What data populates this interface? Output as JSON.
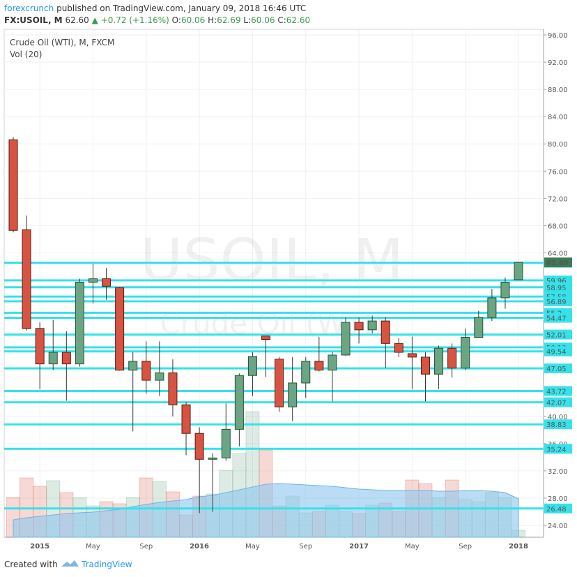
{
  "chart_data": {
    "type": "candlestick",
    "header": {
      "author": "forexcrunch",
      "published": "published on TradingView.com, January 09, 2018 16:46 UTC",
      "symbol": "FX:USOIL, M",
      "price": "62.60",
      "change": "+0.72 (+1.16%)",
      "o_label": "O:",
      "o": "60.06",
      "h_label": "H:",
      "h": "62.69",
      "l_label": "L:",
      "l": "60.06",
      "c_label": "C:",
      "c": "62.60"
    },
    "legend": {
      "title": "Crude Oil (WTI), M, FXCM",
      "volume": "Vol (20)"
    },
    "watermark": {
      "symbol": "USOIL, M",
      "name": "Crude Oil (WTI)"
    },
    "footer": {
      "created": "Created with",
      "brand": "TradingView"
    },
    "categories": [
      null,
      null,
      "2015",
      null,
      null,
      null,
      "May",
      null,
      null,
      null,
      "Sep",
      null,
      null,
      null,
      "2016",
      null,
      null,
      null,
      "May",
      null,
      null,
      null,
      "Sep",
      null,
      null,
      null,
      "2017",
      null,
      null,
      null,
      "May",
      null,
      null,
      null,
      "Sep",
      null,
      null,
      null,
      "2018"
    ],
    "open": [
      80.6,
      67.4,
      52.9,
      47.7,
      49.4,
      47.7,
      59.7,
      60.2,
      58.9,
      46.8,
      48.1,
      45.3,
      46.4,
      41.7,
      37.5,
      33.7,
      33.9,
      38.1,
      46,
      51.8,
      48.4,
      41.4,
      44.9,
      48.1,
      46.8,
      49,
      53.8,
      52.7,
      54,
      50.7,
      49.2,
      48.7,
      46.2,
      50,
      47.1,
      51.6,
      54.5,
      57.4,
      60.06
    ],
    "high": [
      81,
      69.5,
      53.8,
      54.2,
      52.5,
      60.2,
      62.4,
      61.8,
      59,
      49.4,
      51,
      51,
      48.4,
      42.1,
      38.4,
      34.6,
      41.9,
      46.3,
      49.4,
      51.8,
      48.7,
      48.7,
      48.7,
      51.7,
      49.4,
      54.5,
      54.5,
      54.8,
      54.5,
      51.5,
      51.7,
      49.4,
      50.4,
      50.7,
      52.9,
      55.5,
      58.7,
      60.4,
      62.69
    ],
    "low": [
      67,
      52.6,
      44,
      46.8,
      42.3,
      47.3,
      56.6,
      57.1,
      46.7,
      37.8,
      43.3,
      43,
      40,
      34.3,
      25.8,
      26,
      33.5,
      35.6,
      43,
      45.8,
      40.7,
      39.3,
      42.7,
      46.6,
      42.2,
      48.9,
      50.7,
      52.2,
      47.1,
      48.7,
      44,
      42.2,
      44,
      45.7,
      46.8,
      51.8,
      54,
      55.8,
      60.06
    ],
    "close": [
      67.3,
      52.9,
      47.7,
      49.4,
      47.7,
      59.7,
      60.2,
      59.1,
      46.8,
      48.1,
      45.3,
      46.4,
      41.7,
      37.5,
      33.7,
      33.9,
      38.1,
      46,
      48.8,
      51.3,
      41.4,
      44.9,
      48.1,
      46.8,
      49,
      53.8,
      52.7,
      54,
      50.7,
      49.4,
      48.7,
      46.2,
      50,
      47.1,
      51.6,
      54.5,
      57.4,
      59.7,
      62.6
    ],
    "volume": [
      57,
      85,
      73,
      81,
      64,
      57,
      45,
      51,
      48,
      57,
      85,
      80,
      65,
      32,
      59,
      62,
      96,
      120,
      180,
      125,
      45,
      59,
      35,
      37,
      46,
      37,
      34,
      46,
      49,
      37,
      82,
      77,
      57,
      82,
      54,
      51,
      64,
      57,
      10
    ],
    "volume_ma": [
      25,
      28,
      30,
      32,
      34,
      35,
      36,
      38,
      40,
      44,
      47,
      50,
      52,
      54,
      58,
      60,
      64,
      68,
      72,
      76,
      77,
      76,
      75,
      74,
      73,
      71,
      69,
      68,
      67,
      67,
      67,
      67,
      66,
      66,
      67,
      67,
      66,
      64,
      55
    ],
    "up_color": "#6ba583",
    "down_color": "#d75442",
    "volume_ma_color": "#8cc6ef",
    "level_color": "#36e2ea",
    "ylim": [
      22.26,
      96.82
    ],
    "yticks": [
      {
        "value": 96,
        "label": "96.00"
      },
      {
        "value": 92,
        "label": "92.00"
      },
      {
        "value": 88,
        "label": "88.00"
      },
      {
        "value": 84,
        "label": "84.00"
      },
      {
        "value": 80,
        "label": "80.00"
      },
      {
        "value": 76,
        "label": "76.00"
      },
      {
        "value": 72,
        "label": "72.00"
      },
      {
        "value": 68,
        "label": "68.00"
      },
      {
        "value": 64,
        "label": "64.00"
      },
      {
        "value": 40,
        "label": "40.00"
      },
      {
        "value": 36,
        "label": "36.00"
      },
      {
        "value": 32,
        "label": "32.00"
      },
      {
        "value": 28,
        "label": "28.00"
      },
      {
        "value": 24,
        "label": "24.00"
      }
    ],
    "levels": [
      62.56,
      59.96,
      58.95,
      57.58,
      56.89,
      55.2,
      54.47,
      52.01,
      50.13,
      49.54,
      47.05,
      43.72,
      42.07,
      38.83,
      35.24,
      26.48
    ],
    "last_price": {
      "value": 62.6,
      "label": "62.60"
    },
    "grid": true
  }
}
